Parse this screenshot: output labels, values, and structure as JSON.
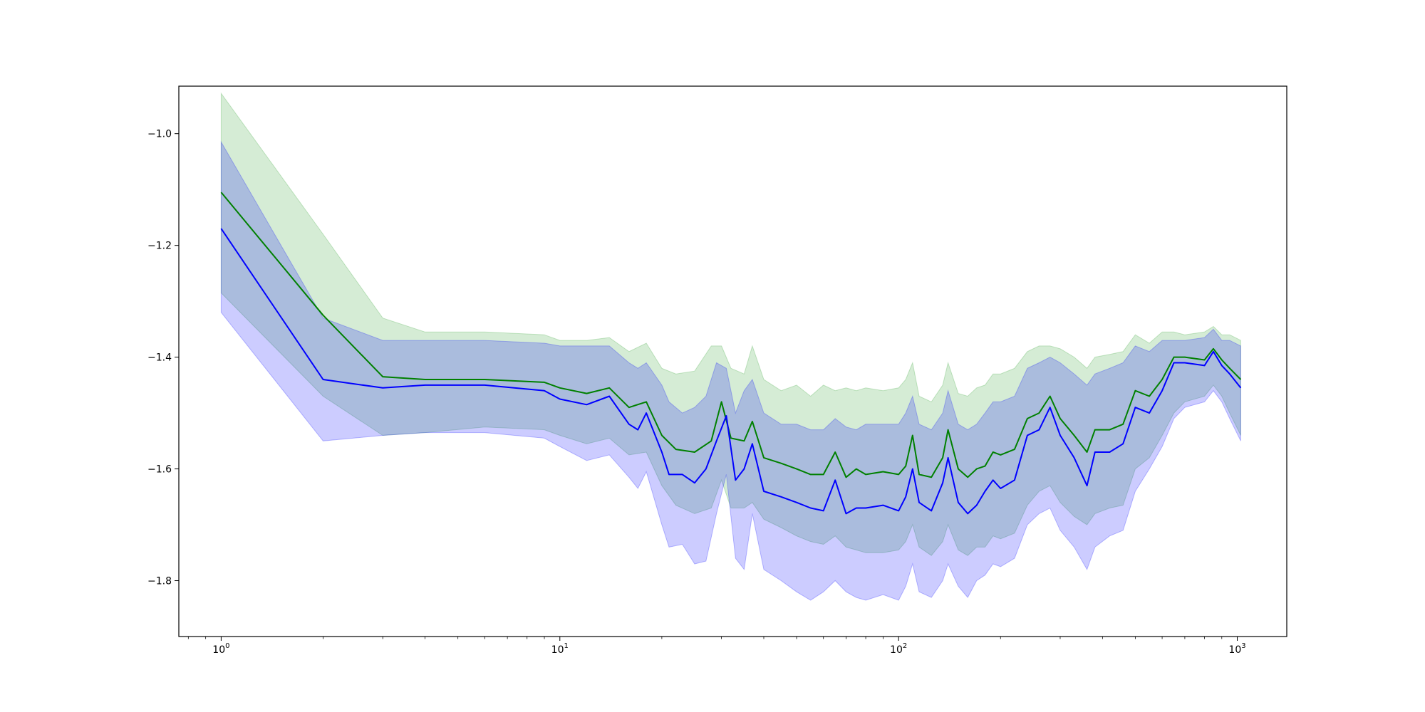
{
  "chart_data": {
    "type": "line",
    "title": "",
    "xlabel": "",
    "ylabel": "",
    "xscale": "log",
    "xlim": [
      0.75,
      1400
    ],
    "ylim": [
      -1.9,
      -0.915
    ],
    "grid": false,
    "legend": "none",
    "x_ticks": [
      {
        "base": "10",
        "exp": "0",
        "value": 1
      },
      {
        "base": "10",
        "exp": "1",
        "value": 10
      },
      {
        "base": "10",
        "exp": "2",
        "value": 100
      },
      {
        "base": "10",
        "exp": "3",
        "value": 1000
      }
    ],
    "y_ticks": [
      {
        "label": "−1.0",
        "value": -1.0
      },
      {
        "label": "−1.2",
        "value": -1.2
      },
      {
        "label": "−1.4",
        "value": -1.4
      },
      {
        "label": "−1.6",
        "value": -1.6
      },
      {
        "label": "−1.8",
        "value": -1.8
      }
    ],
    "series": [
      {
        "color": "#008000",
        "band_color": "#2ca02c",
        "points": [
          [
            1,
            -1.105,
            -1.285,
            -0.928
          ],
          [
            2,
            -1.325,
            -1.47,
            -1.18
          ],
          [
            3,
            -1.435,
            -1.54,
            -1.33
          ],
          [
            4,
            -1.44,
            -1.535,
            -1.355
          ],
          [
            6,
            -1.44,
            -1.525,
            -1.355
          ],
          [
            9,
            -1.445,
            -1.53,
            -1.36
          ],
          [
            10,
            -1.455,
            -1.54,
            -1.37
          ],
          [
            12,
            -1.465,
            -1.555,
            -1.37
          ],
          [
            14,
            -1.455,
            -1.545,
            -1.365
          ],
          [
            16,
            -1.49,
            -1.575,
            -1.39
          ],
          [
            18,
            -1.48,
            -1.57,
            -1.375
          ],
          [
            20,
            -1.54,
            -1.63,
            -1.42
          ],
          [
            22,
            -1.565,
            -1.665,
            -1.43
          ],
          [
            25,
            -1.57,
            -1.68,
            -1.425
          ],
          [
            28,
            -1.55,
            -1.67,
            -1.38
          ],
          [
            30,
            -1.48,
            -1.62,
            -1.38
          ],
          [
            32,
            -1.545,
            -1.67,
            -1.42
          ],
          [
            35,
            -1.55,
            -1.67,
            -1.43
          ],
          [
            37,
            -1.515,
            -1.66,
            -1.38
          ],
          [
            40,
            -1.58,
            -1.69,
            -1.44
          ],
          [
            45,
            -1.59,
            -1.705,
            -1.46
          ],
          [
            50,
            -1.6,
            -1.72,
            -1.45
          ],
          [
            55,
            -1.61,
            -1.73,
            -1.47
          ],
          [
            60,
            -1.61,
            -1.735,
            -1.45
          ],
          [
            65,
            -1.57,
            -1.72,
            -1.46
          ],
          [
            70,
            -1.615,
            -1.74,
            -1.455
          ],
          [
            75,
            -1.6,
            -1.745,
            -1.46
          ],
          [
            80,
            -1.61,
            -1.75,
            -1.455
          ],
          [
            90,
            -1.605,
            -1.75,
            -1.46
          ],
          [
            100,
            -1.61,
            -1.745,
            -1.455
          ],
          [
            105,
            -1.595,
            -1.73,
            -1.44
          ],
          [
            110,
            -1.54,
            -1.7,
            -1.41
          ],
          [
            115,
            -1.61,
            -1.74,
            -1.47
          ],
          [
            125,
            -1.615,
            -1.755,
            -1.48
          ],
          [
            135,
            -1.58,
            -1.73,
            -1.45
          ],
          [
            140,
            -1.53,
            -1.7,
            -1.41
          ],
          [
            150,
            -1.6,
            -1.745,
            -1.465
          ],
          [
            160,
            -1.615,
            -1.755,
            -1.47
          ],
          [
            170,
            -1.6,
            -1.74,
            -1.455
          ],
          [
            180,
            -1.595,
            -1.74,
            -1.45
          ],
          [
            190,
            -1.57,
            -1.72,
            -1.43
          ],
          [
            200,
            -1.575,
            -1.725,
            -1.43
          ],
          [
            220,
            -1.565,
            -1.715,
            -1.42
          ],
          [
            240,
            -1.51,
            -1.665,
            -1.39
          ],
          [
            260,
            -1.5,
            -1.64,
            -1.38
          ],
          [
            280,
            -1.47,
            -1.63,
            -1.38
          ],
          [
            300,
            -1.51,
            -1.66,
            -1.385
          ],
          [
            330,
            -1.54,
            -1.685,
            -1.4
          ],
          [
            360,
            -1.57,
            -1.7,
            -1.42
          ],
          [
            380,
            -1.53,
            -1.68,
            -1.4
          ],
          [
            420,
            -1.53,
            -1.67,
            -1.395
          ],
          [
            460,
            -1.52,
            -1.665,
            -1.39
          ],
          [
            500,
            -1.46,
            -1.6,
            -1.36
          ],
          [
            550,
            -1.47,
            -1.58,
            -1.375
          ],
          [
            600,
            -1.44,
            -1.54,
            -1.355
          ],
          [
            650,
            -1.4,
            -1.5,
            -1.355
          ],
          [
            700,
            -1.4,
            -1.48,
            -1.36
          ],
          [
            800,
            -1.405,
            -1.47,
            -1.355
          ],
          [
            850,
            -1.385,
            -1.45,
            -1.345
          ],
          [
            900,
            -1.405,
            -1.47,
            -1.36
          ],
          [
            950,
            -1.42,
            -1.5,
            -1.36
          ],
          [
            1024,
            -1.44,
            -1.54,
            -1.37
          ]
        ]
      },
      {
        "color": "#0000ff",
        "band_color": "#0000ff",
        "points": [
          [
            1,
            -1.17,
            -1.32,
            -1.015
          ],
          [
            2,
            -1.44,
            -1.55,
            -1.33
          ],
          [
            3,
            -1.455,
            -1.54,
            -1.37
          ],
          [
            4,
            -1.45,
            -1.535,
            -1.37
          ],
          [
            6,
            -1.45,
            -1.535,
            -1.37
          ],
          [
            9,
            -1.46,
            -1.545,
            -1.375
          ],
          [
            10,
            -1.475,
            -1.56,
            -1.38
          ],
          [
            12,
            -1.485,
            -1.585,
            -1.38
          ],
          [
            14,
            -1.47,
            -1.575,
            -1.38
          ],
          [
            16,
            -1.52,
            -1.615,
            -1.41
          ],
          [
            17,
            -1.53,
            -1.635,
            -1.42
          ],
          [
            18,
            -1.5,
            -1.605,
            -1.41
          ],
          [
            20,
            -1.57,
            -1.7,
            -1.45
          ],
          [
            21,
            -1.61,
            -1.74,
            -1.48
          ],
          [
            23,
            -1.61,
            -1.735,
            -1.5
          ],
          [
            25,
            -1.625,
            -1.77,
            -1.49
          ],
          [
            27,
            -1.6,
            -1.765,
            -1.47
          ],
          [
            29,
            -1.55,
            -1.68,
            -1.41
          ],
          [
            31,
            -1.505,
            -1.61,
            -1.42
          ],
          [
            33,
            -1.62,
            -1.76,
            -1.5
          ],
          [
            35,
            -1.6,
            -1.78,
            -1.46
          ],
          [
            37,
            -1.555,
            -1.68,
            -1.44
          ],
          [
            40,
            -1.64,
            -1.78,
            -1.5
          ],
          [
            45,
            -1.65,
            -1.8,
            -1.52
          ],
          [
            50,
            -1.66,
            -1.82,
            -1.52
          ],
          [
            55,
            -1.67,
            -1.835,
            -1.53
          ],
          [
            60,
            -1.675,
            -1.82,
            -1.53
          ],
          [
            65,
            -1.62,
            -1.8,
            -1.51
          ],
          [
            70,
            -1.68,
            -1.82,
            -1.525
          ],
          [
            75,
            -1.67,
            -1.83,
            -1.53
          ],
          [
            80,
            -1.67,
            -1.835,
            -1.52
          ],
          [
            90,
            -1.665,
            -1.825,
            -1.52
          ],
          [
            100,
            -1.675,
            -1.835,
            -1.52
          ],
          [
            105,
            -1.65,
            -1.81,
            -1.5
          ],
          [
            110,
            -1.6,
            -1.77,
            -1.47
          ],
          [
            115,
            -1.66,
            -1.82,
            -1.52
          ],
          [
            125,
            -1.675,
            -1.83,
            -1.53
          ],
          [
            135,
            -1.625,
            -1.8,
            -1.5
          ],
          [
            140,
            -1.58,
            -1.77,
            -1.46
          ],
          [
            150,
            -1.66,
            -1.81,
            -1.52
          ],
          [
            160,
            -1.68,
            -1.83,
            -1.53
          ],
          [
            170,
            -1.665,
            -1.8,
            -1.52
          ],
          [
            180,
            -1.64,
            -1.79,
            -1.5
          ],
          [
            190,
            -1.62,
            -1.77,
            -1.48
          ],
          [
            200,
            -1.635,
            -1.775,
            -1.48
          ],
          [
            220,
            -1.62,
            -1.76,
            -1.47
          ],
          [
            240,
            -1.54,
            -1.7,
            -1.42
          ],
          [
            260,
            -1.53,
            -1.68,
            -1.41
          ],
          [
            280,
            -1.49,
            -1.67,
            -1.4
          ],
          [
            300,
            -1.54,
            -1.71,
            -1.41
          ],
          [
            330,
            -1.58,
            -1.74,
            -1.43
          ],
          [
            360,
            -1.63,
            -1.78,
            -1.45
          ],
          [
            380,
            -1.57,
            -1.74,
            -1.43
          ],
          [
            420,
            -1.57,
            -1.72,
            -1.42
          ],
          [
            460,
            -1.555,
            -1.71,
            -1.41
          ],
          [
            500,
            -1.49,
            -1.64,
            -1.38
          ],
          [
            550,
            -1.5,
            -1.6,
            -1.39
          ],
          [
            600,
            -1.46,
            -1.56,
            -1.37
          ],
          [
            650,
            -1.41,
            -1.51,
            -1.37
          ],
          [
            700,
            -1.41,
            -1.49,
            -1.37
          ],
          [
            800,
            -1.415,
            -1.48,
            -1.365
          ],
          [
            850,
            -1.39,
            -1.46,
            -1.35
          ],
          [
            900,
            -1.415,
            -1.48,
            -1.37
          ],
          [
            950,
            -1.43,
            -1.51,
            -1.37
          ],
          [
            1024,
            -1.455,
            -1.55,
            -1.38
          ]
        ]
      }
    ]
  }
}
